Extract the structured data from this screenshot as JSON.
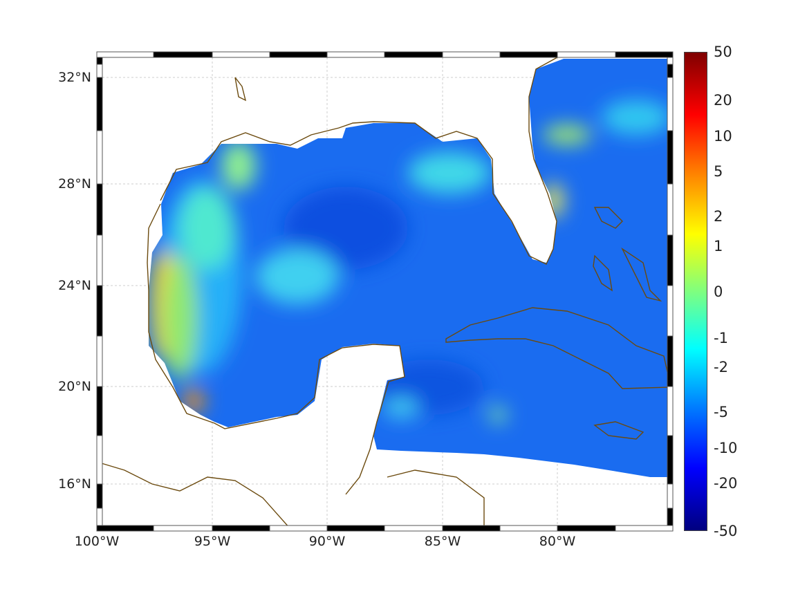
{
  "map": {
    "lon_labels": [
      "100°W",
      "95°W",
      "90°W",
      "85°W",
      "80°W"
    ],
    "lat_labels": [
      "32°N",
      "28°N",
      "24°N",
      "20°N",
      "16°N"
    ],
    "lon_range": [
      -100,
      -75
    ],
    "lat_range": [
      14.3,
      33
    ]
  },
  "colorbar": {
    "ticks": [
      "50",
      "20",
      "10",
      "5",
      "2",
      "1",
      "0",
      "-1",
      "-2",
      "-5",
      "-10",
      "-20",
      "-50"
    ],
    "colormap": [
      "#00007f",
      "#0000ff",
      "#007fff",
      "#00ffff",
      "#7fff7f",
      "#ffff00",
      "#ff7f00",
      "#ff0000",
      "#7f0000"
    ]
  },
  "colors": {
    "coast": "#6b4a0e",
    "ocean_base": "#1a6cf0"
  }
}
